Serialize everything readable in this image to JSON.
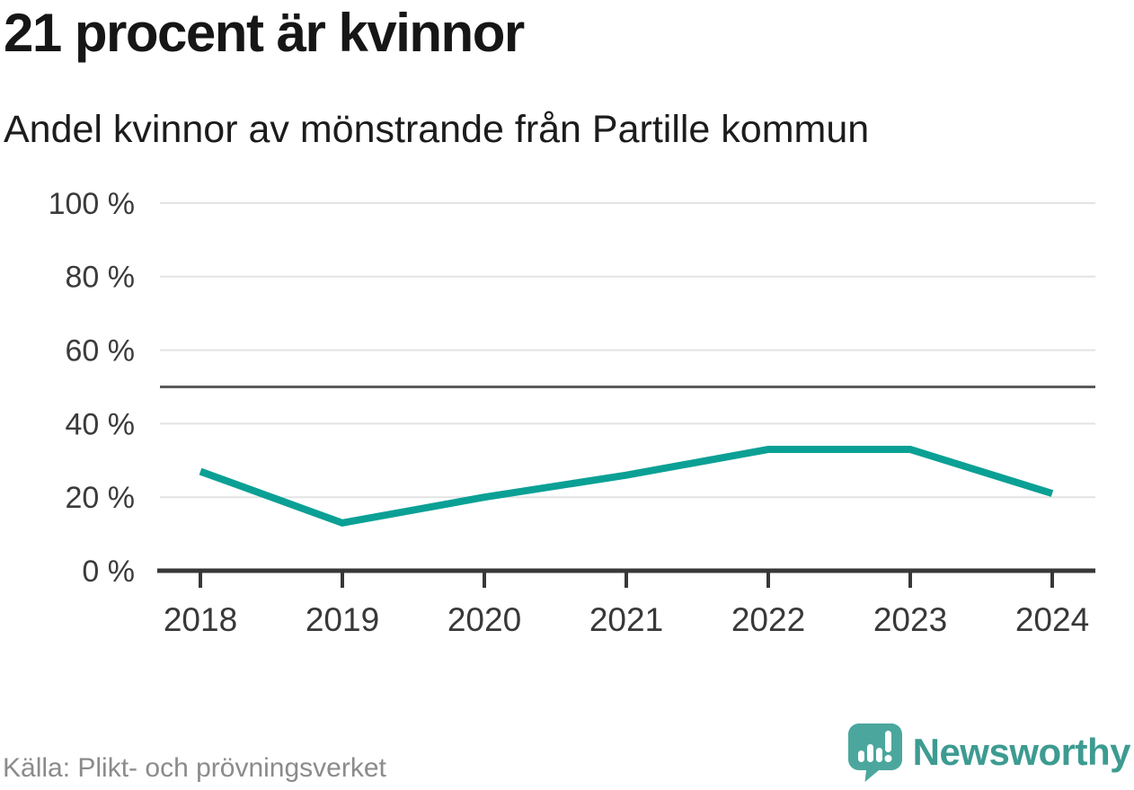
{
  "header": {
    "title": "21 procent är kvinnor",
    "subtitle": "Andel kvinnor av mönstrande från Partille kommun"
  },
  "chart_data": {
    "type": "line",
    "title": "21 procent är kvinnor",
    "subtitle": "Andel kvinnor av mönstrande från Partille kommun",
    "x": [
      2018,
      2019,
      2020,
      2021,
      2022,
      2023,
      2024
    ],
    "xtick_labels": [
      "2018",
      "2019",
      "2020",
      "2021",
      "2022",
      "2023",
      "2024"
    ],
    "series": [
      {
        "name": "Andel kvinnor av mönstrande",
        "values": [
          27,
          13,
          20,
          26,
          33,
          33,
          21
        ]
      }
    ],
    "unit": "%",
    "ylim": [
      0,
      100
    ],
    "yticks": [
      0,
      20,
      40,
      60,
      80,
      100
    ],
    "ytick_labels": [
      "0 %",
      "20 %",
      "40 %",
      "60 %",
      "80 %",
      "100 %"
    ],
    "reference_line_y": 50,
    "grid": "horizontal",
    "legend": "none",
    "line_color": "#0ba095",
    "reference_line_color": "#5a5a5a",
    "gridline_color": "#e3e3e3",
    "axis_color": "#383838"
  },
  "footer": {
    "source": "Källa: Plikt- och prövningsverket",
    "brand": "Newsworthy"
  },
  "colors": {
    "accent_teal": "#0ba095",
    "brand_teal": "#3d9b91",
    "logo_icon_teal": "#4ba79d",
    "title_text": "#161616",
    "axis_text": "#3b3b3b",
    "muted_text": "#8b8b8b"
  }
}
